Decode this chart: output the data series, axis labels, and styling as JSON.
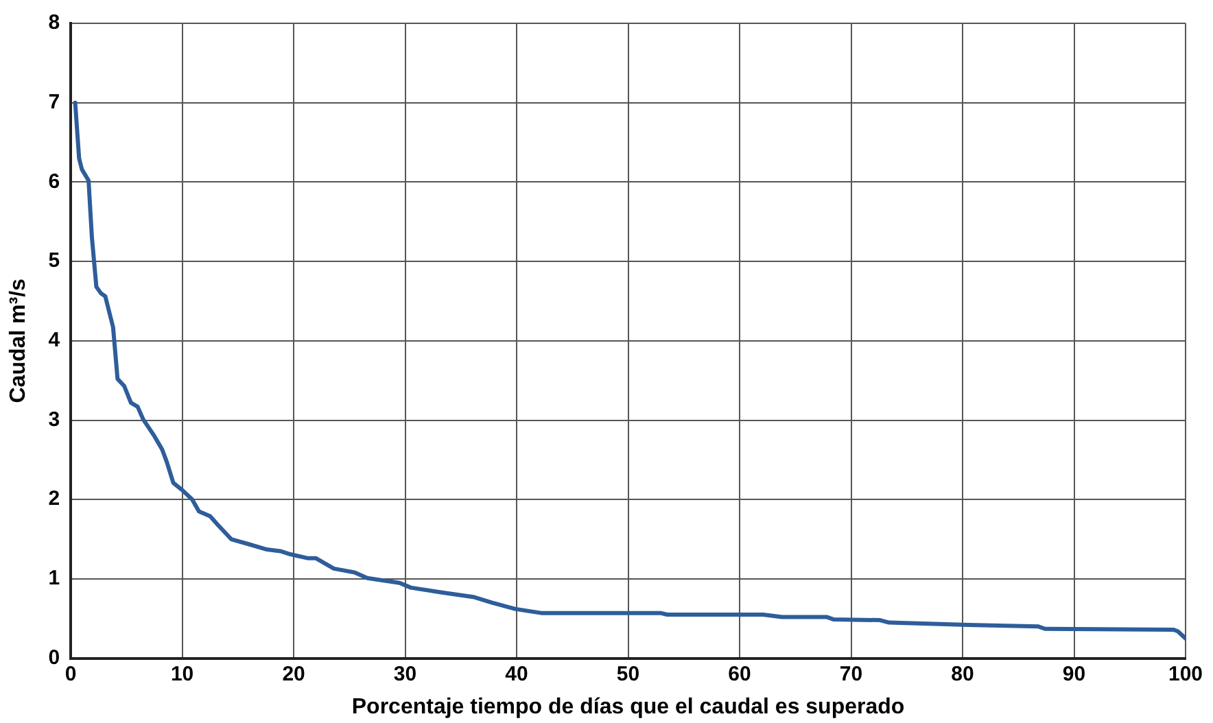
{
  "chart_data": {
    "type": "line",
    "xlabel": "Porcentaje tiempo de días que el caudal es superado",
    "ylabel": "Caudal m³/s",
    "xlim": [
      0,
      100
    ],
    "xticks": [
      0,
      10,
      20,
      30,
      40,
      50,
      60,
      70,
      80,
      90,
      100
    ],
    "ylim": [
      0,
      8
    ],
    "yticks": [
      0,
      1,
      2,
      3,
      4,
      5,
      6,
      7,
      8
    ],
    "grid": true,
    "legend": false,
    "marker": "none",
    "line_style": "solid",
    "series": [
      {
        "color": "#2e5d9a",
        "x": [
          0.4,
          0.75,
          1.0,
          1.6,
          1.9,
          2.3,
          2.7,
          3.1,
          3.8,
          4.2,
          4.8,
          5.4,
          6.0,
          6.5,
          7.5,
          8.2,
          8.6,
          9.2,
          10.0,
          10.9,
          11.5,
          12.5,
          13.2,
          14.4,
          15.9,
          17.6,
          18.8,
          19.7,
          21.3,
          22.0,
          23.6,
          25.5,
          26.6,
          29.5,
          30.5,
          33.2,
          36.2,
          37.8,
          39.9,
          42.2,
          52.9,
          53.5,
          62.1,
          63.8,
          67.8,
          68.4,
          72.6,
          73.4,
          80.5,
          86.8,
          87.4,
          98.9,
          99.3,
          100
        ],
        "values": [
          7.0,
          6.3,
          6.16,
          6.02,
          5.3,
          4.68,
          4.6,
          4.56,
          4.17,
          3.52,
          3.43,
          3.22,
          3.17,
          3.01,
          2.8,
          2.63,
          2.48,
          2.21,
          2.12,
          2.0,
          1.85,
          1.79,
          1.68,
          1.5,
          1.44,
          1.37,
          1.35,
          1.31,
          1.26,
          1.26,
          1.13,
          1.08,
          1.01,
          0.95,
          0.89,
          0.83,
          0.77,
          0.7,
          0.62,
          0.57,
          0.57,
          0.55,
          0.55,
          0.52,
          0.52,
          0.49,
          0.48,
          0.45,
          0.42,
          0.4,
          0.37,
          0.36,
          0.34,
          0.25
        ]
      }
    ]
  }
}
